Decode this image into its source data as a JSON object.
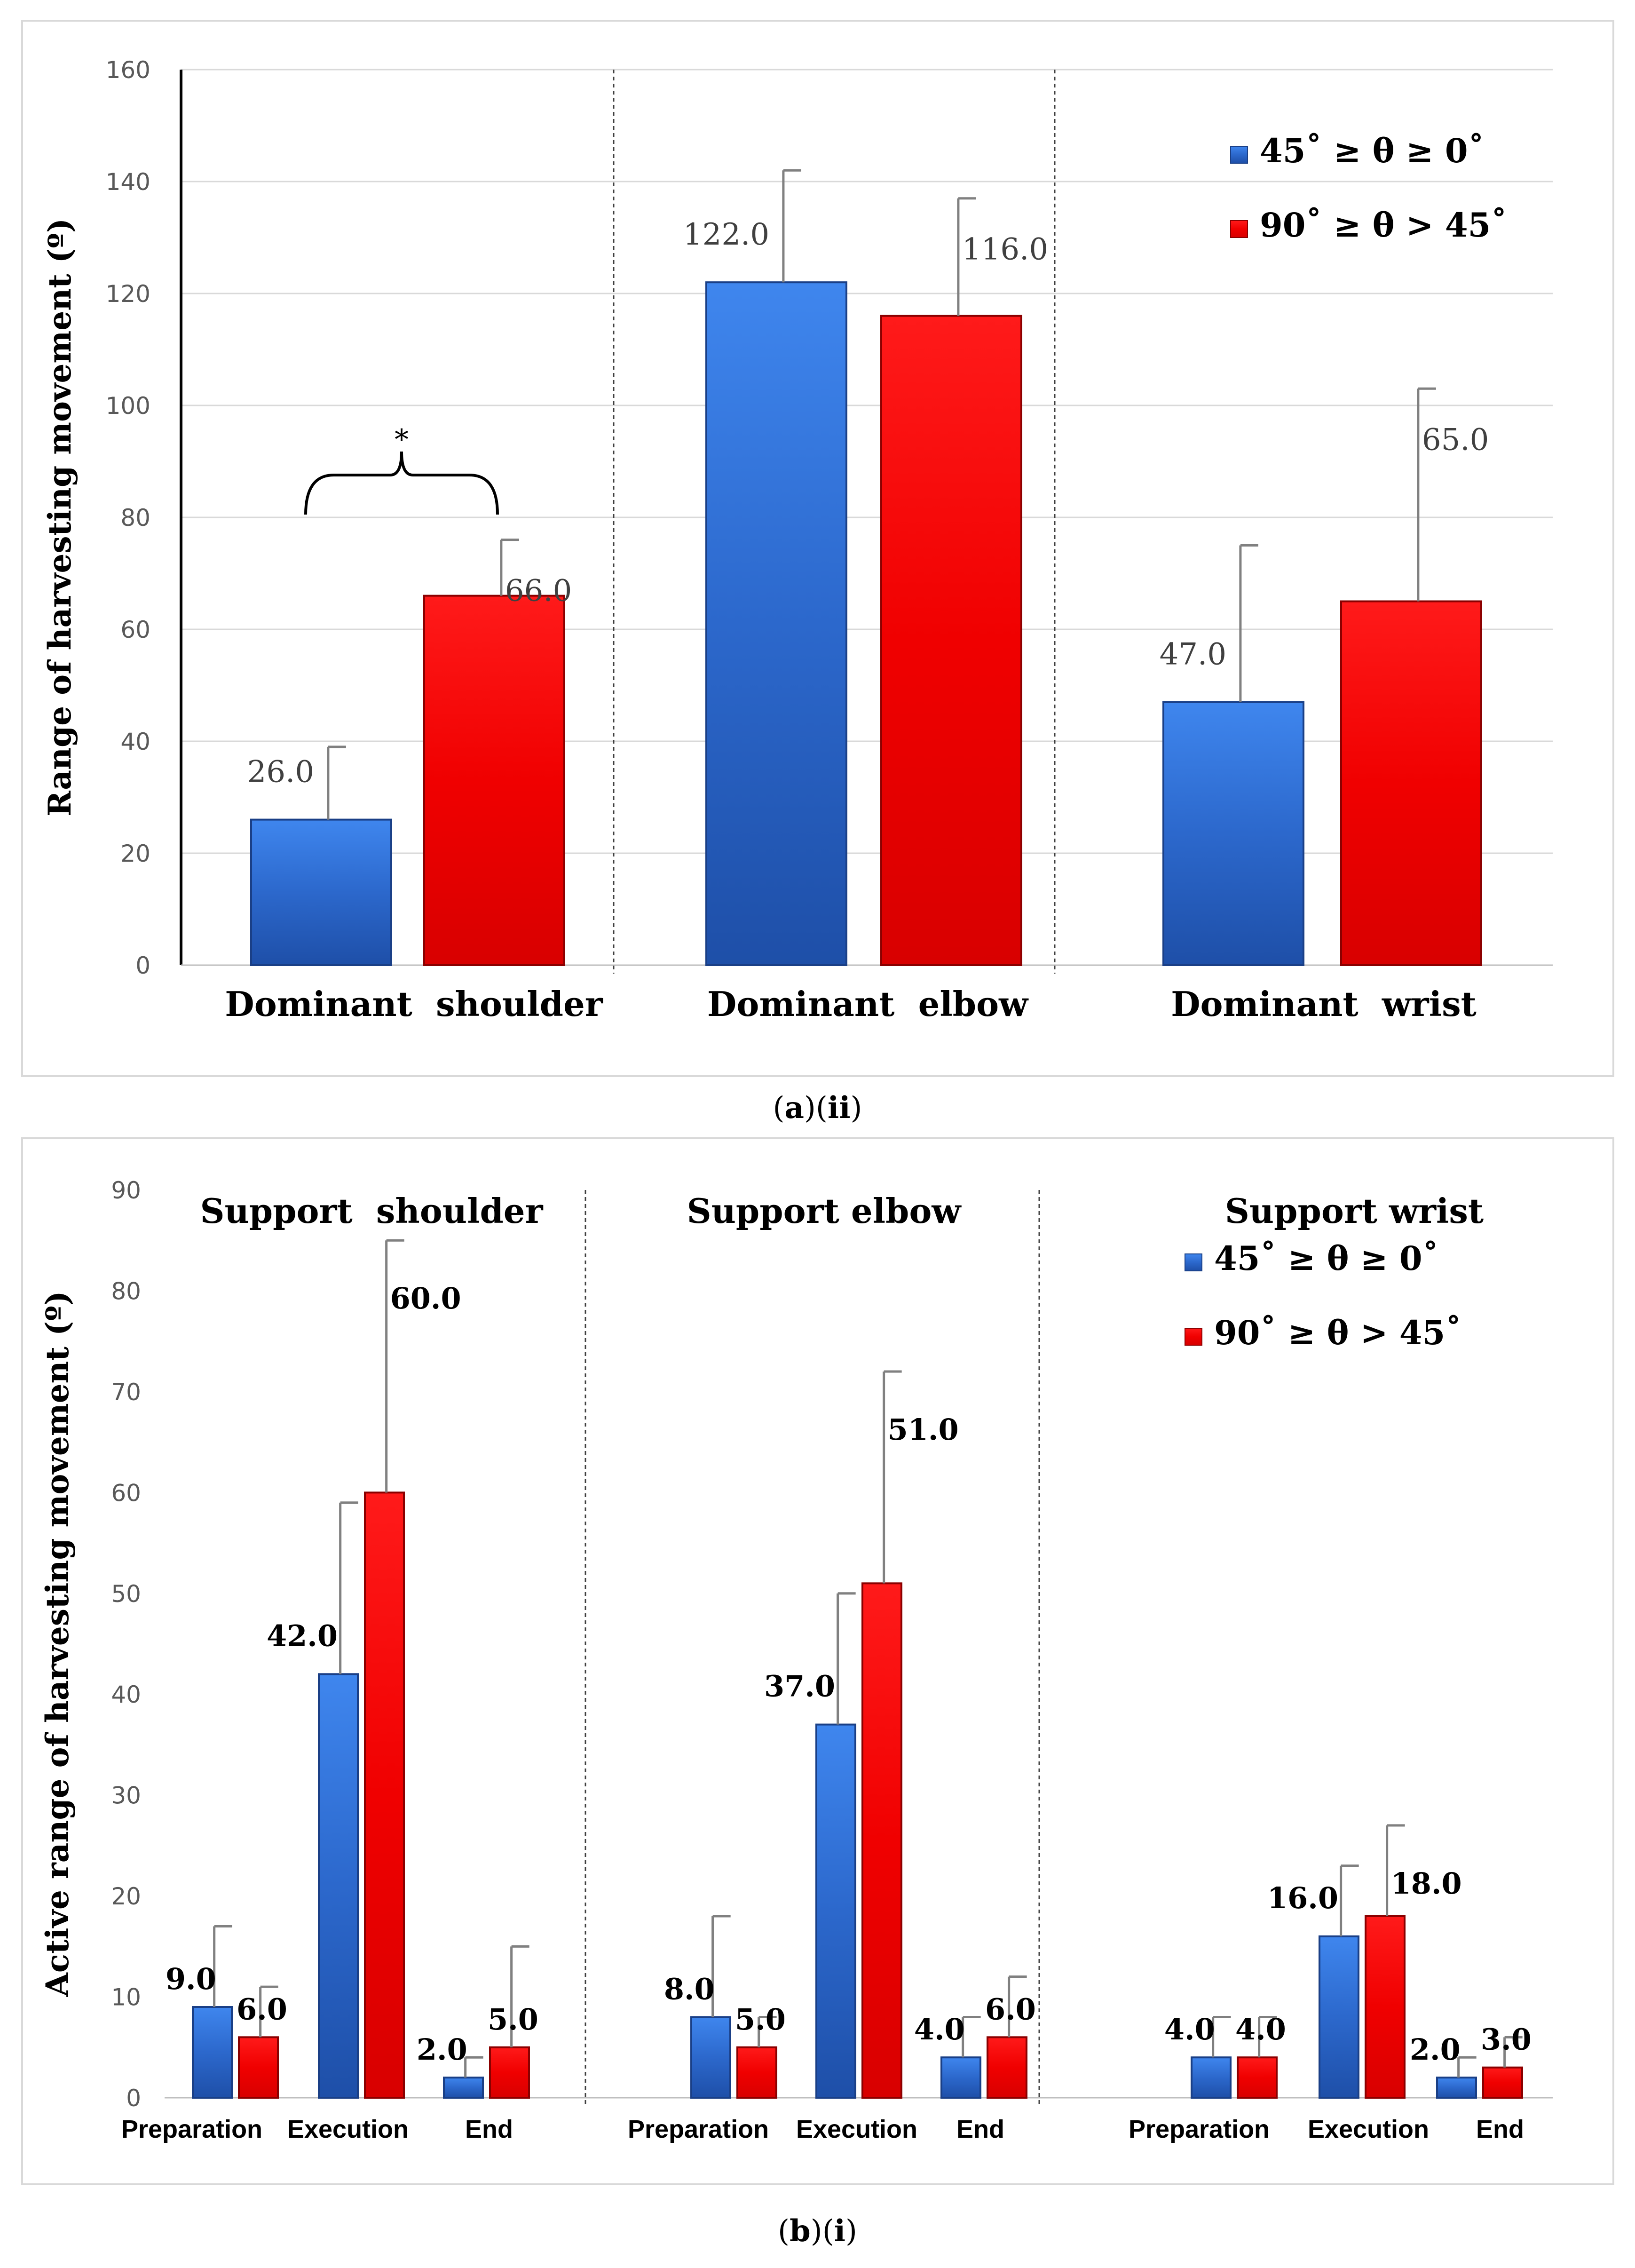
{
  "chart_data": [
    {
      "type": "bar",
      "panel": "a-ii",
      "ylabel": "Range of harvesting movement (º)",
      "ylim": [
        0,
        160
      ],
      "yticks": [
        0,
        20,
        40,
        60,
        80,
        100,
        120,
        140,
        160
      ],
      "legend": {
        "position": "top-right",
        "entries": [
          "45˚ ≥ θ ≥ 0˚",
          "90˚ ≥ θ > 45˚"
        ]
      },
      "series_colors": [
        "#2f6fd6",
        "#f00000"
      ],
      "groups": [
        {
          "label": "Dominant  shoulder",
          "values": [
            26.0,
            66.0
          ],
          "labels": [
            "26.0",
            "66.0"
          ],
          "errors": [
            13,
            10
          ],
          "significance": "*"
        },
        {
          "label": "Dominant  elbow",
          "values": [
            122.0,
            116.0
          ],
          "labels": [
            "122.0",
            "116.0"
          ],
          "errors": [
            20,
            21
          ]
        },
        {
          "label": "Dominant  wrist",
          "values": [
            47.0,
            65.0
          ],
          "labels": [
            "47.0",
            "65.0"
          ],
          "errors": [
            28,
            38
          ]
        }
      ]
    },
    {
      "type": "bar",
      "panel": "b-i",
      "ylabel": "Active range of harvesting movement (º)",
      "ylim": [
        0,
        90
      ],
      "yticks": [
        0,
        10,
        20,
        30,
        40,
        50,
        60,
        70,
        80,
        90
      ],
      "legend": {
        "position": "top-right",
        "entries": [
          "45˚ ≥ θ ≥ 0˚",
          "90˚ ≥ θ > 45˚"
        ]
      },
      "series_colors": [
        "#2f6fd6",
        "#f00000"
      ],
      "groups": [
        {
          "title": "Support  shoulder",
          "categories": [
            "Preparation",
            "Execution",
            "End"
          ],
          "values": [
            [
              9.0,
              6.0
            ],
            [
              42.0,
              60.0
            ],
            [
              2.0,
              5.0
            ]
          ],
          "labels": [
            [
              "9.0",
              "6.0"
            ],
            [
              "42.0",
              "60.0"
            ],
            [
              "2.0",
              "5.0"
            ]
          ],
          "errors": [
            [
              8,
              5
            ],
            [
              17,
              25
            ],
            [
              2,
              10
            ]
          ]
        },
        {
          "title": "Support elbow",
          "categories": [
            "Preparation",
            "Execution",
            "End"
          ],
          "values": [
            [
              8.0,
              5.0
            ],
            [
              37.0,
              51.0
            ],
            [
              4.0,
              6.0
            ]
          ],
          "labels": [
            [
              "8.0",
              "5.0"
            ],
            [
              "37.0",
              "51.0"
            ],
            [
              "4.0",
              "6.0"
            ]
          ],
          "errors": [
            [
              10,
              3
            ],
            [
              13,
              21
            ],
            [
              4,
              6
            ]
          ]
        },
        {
          "title": "Support wrist",
          "categories": [
            "Preparation",
            "Execution",
            "End"
          ],
          "values": [
            [
              4.0,
              4.0
            ],
            [
              16.0,
              18.0
            ],
            [
              2.0,
              3.0
            ]
          ],
          "labels": [
            [
              "4.0",
              "4.0"
            ],
            [
              "16.0",
              "18.0"
            ],
            [
              "2.0",
              "3.0"
            ]
          ],
          "errors": [
            [
              4,
              4
            ],
            [
              7,
              9
            ],
            [
              2,
              3
            ]
          ]
        }
      ]
    }
  ],
  "captions": {
    "a": {
      "open": "(",
      "letter": "a",
      "mid": ")(",
      "roman": "ii",
      "close": ")"
    },
    "b": {
      "open": "(",
      "letter": "b",
      "mid": ")(",
      "roman": "i",
      "close": ")"
    }
  }
}
